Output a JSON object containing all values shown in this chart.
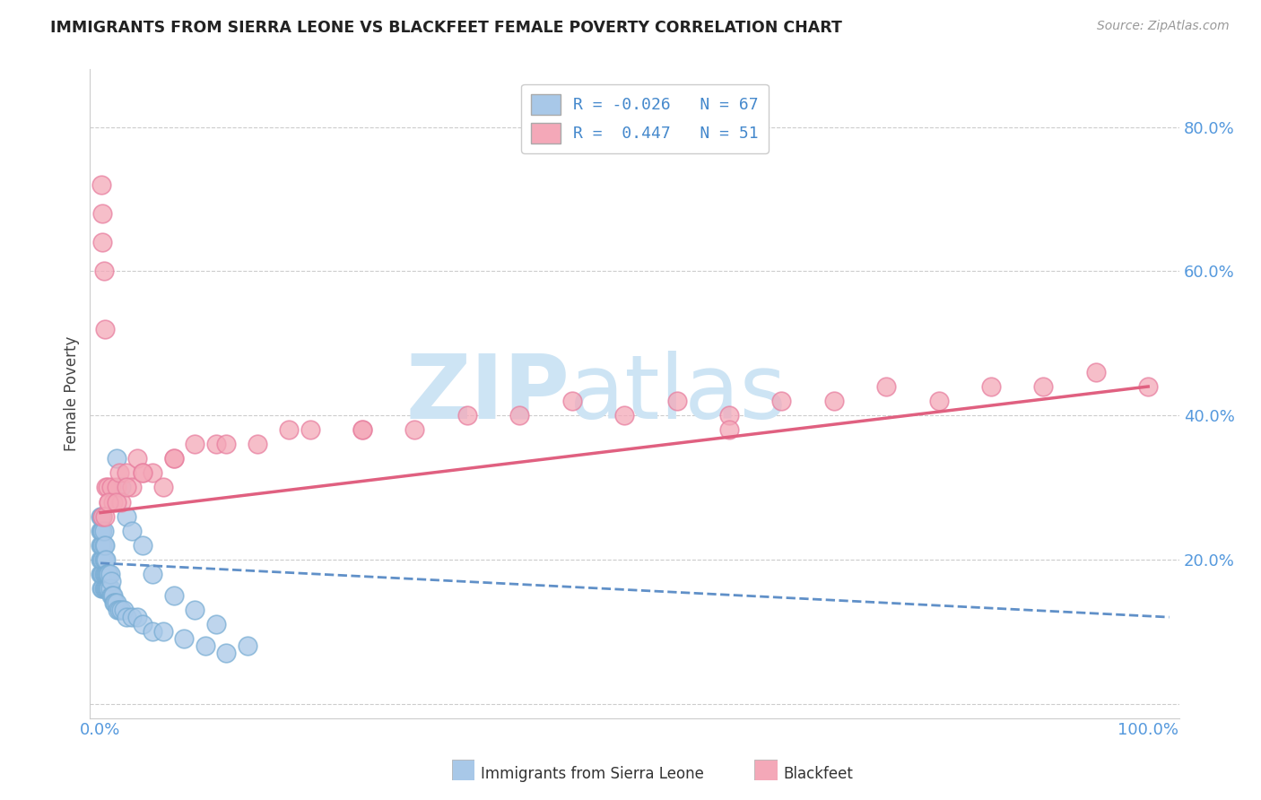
{
  "title": "IMMIGRANTS FROM SIERRA LEONE VS BLACKFEET FEMALE POVERTY CORRELATION CHART",
  "source": "Source: ZipAtlas.com",
  "ylabel": "Female Poverty",
  "xlim": [
    -0.01,
    1.03
  ],
  "ylim": [
    -0.02,
    0.88
  ],
  "yticks": [
    0.0,
    0.2,
    0.4,
    0.6,
    0.8
  ],
  "ytick_labels": [
    "",
    "20.0%",
    "40.0%",
    "60.0%",
    "80.0%"
  ],
  "blue_R": -0.026,
  "blue_N": 67,
  "pink_R": 0.447,
  "pink_N": 51,
  "blue_color": "#a8c8e8",
  "pink_color": "#f4a8b8",
  "blue_edge_color": "#7aaed4",
  "pink_edge_color": "#e880a0",
  "blue_line_color": "#6090c8",
  "pink_line_color": "#e06080",
  "blue_scatter_x": [
    0.0,
    0.0,
    0.0,
    0.0,
    0.0,
    0.001,
    0.001,
    0.001,
    0.001,
    0.001,
    0.001,
    0.002,
    0.002,
    0.002,
    0.002,
    0.002,
    0.002,
    0.003,
    0.003,
    0.003,
    0.003,
    0.003,
    0.004,
    0.004,
    0.004,
    0.004,
    0.005,
    0.005,
    0.005,
    0.006,
    0.006,
    0.007,
    0.007,
    0.008,
    0.008,
    0.009,
    0.009,
    0.01,
    0.01,
    0.011,
    0.012,
    0.013,
    0.014,
    0.015,
    0.016,
    0.018,
    0.02,
    0.022,
    0.025,
    0.03,
    0.035,
    0.04,
    0.05,
    0.06,
    0.08,
    0.1,
    0.12,
    0.015,
    0.02,
    0.025,
    0.03,
    0.04,
    0.05,
    0.07,
    0.09,
    0.11,
    0.14
  ],
  "blue_scatter_y": [
    0.18,
    0.2,
    0.22,
    0.24,
    0.26,
    0.16,
    0.18,
    0.2,
    0.22,
    0.24,
    0.26,
    0.16,
    0.18,
    0.2,
    0.22,
    0.24,
    0.26,
    0.16,
    0.18,
    0.2,
    0.22,
    0.24,
    0.16,
    0.18,
    0.2,
    0.22,
    0.16,
    0.18,
    0.2,
    0.16,
    0.18,
    0.16,
    0.18,
    0.16,
    0.18,
    0.16,
    0.18,
    0.15,
    0.17,
    0.15,
    0.15,
    0.14,
    0.14,
    0.14,
    0.13,
    0.13,
    0.13,
    0.13,
    0.12,
    0.12,
    0.12,
    0.11,
    0.1,
    0.1,
    0.09,
    0.08,
    0.07,
    0.34,
    0.3,
    0.26,
    0.24,
    0.22,
    0.18,
    0.15,
    0.13,
    0.11,
    0.08
  ],
  "pink_scatter_x": [
    0.001,
    0.002,
    0.002,
    0.003,
    0.004,
    0.005,
    0.007,
    0.008,
    0.01,
    0.012,
    0.015,
    0.018,
    0.02,
    0.025,
    0.03,
    0.035,
    0.04,
    0.05,
    0.06,
    0.07,
    0.09,
    0.11,
    0.15,
    0.2,
    0.25,
    0.3,
    0.4,
    0.5,
    0.55,
    0.6,
    0.65,
    0.7,
    0.75,
    0.8,
    0.85,
    0.9,
    0.95,
    1.0,
    0.002,
    0.004,
    0.008,
    0.015,
    0.025,
    0.04,
    0.07,
    0.12,
    0.18,
    0.25,
    0.35,
    0.45,
    0.6
  ],
  "pink_scatter_y": [
    0.72,
    0.68,
    0.64,
    0.6,
    0.52,
    0.3,
    0.3,
    0.28,
    0.3,
    0.28,
    0.3,
    0.32,
    0.28,
    0.32,
    0.3,
    0.34,
    0.32,
    0.32,
    0.3,
    0.34,
    0.36,
    0.36,
    0.36,
    0.38,
    0.38,
    0.38,
    0.4,
    0.4,
    0.42,
    0.4,
    0.42,
    0.42,
    0.44,
    0.42,
    0.44,
    0.44,
    0.46,
    0.44,
    0.26,
    0.26,
    0.28,
    0.28,
    0.3,
    0.32,
    0.34,
    0.36,
    0.38,
    0.38,
    0.4,
    0.42,
    0.38
  ],
  "blue_trend_x": [
    0.0,
    1.02
  ],
  "blue_trend_y": [
    0.195,
    0.12
  ],
  "pink_trend_x": [
    0.0,
    1.0
  ],
  "pink_trend_y": [
    0.265,
    0.44
  ],
  "watermark_zip_color": "#cde4f4",
  "watermark_atlas_color": "#cde4f4"
}
